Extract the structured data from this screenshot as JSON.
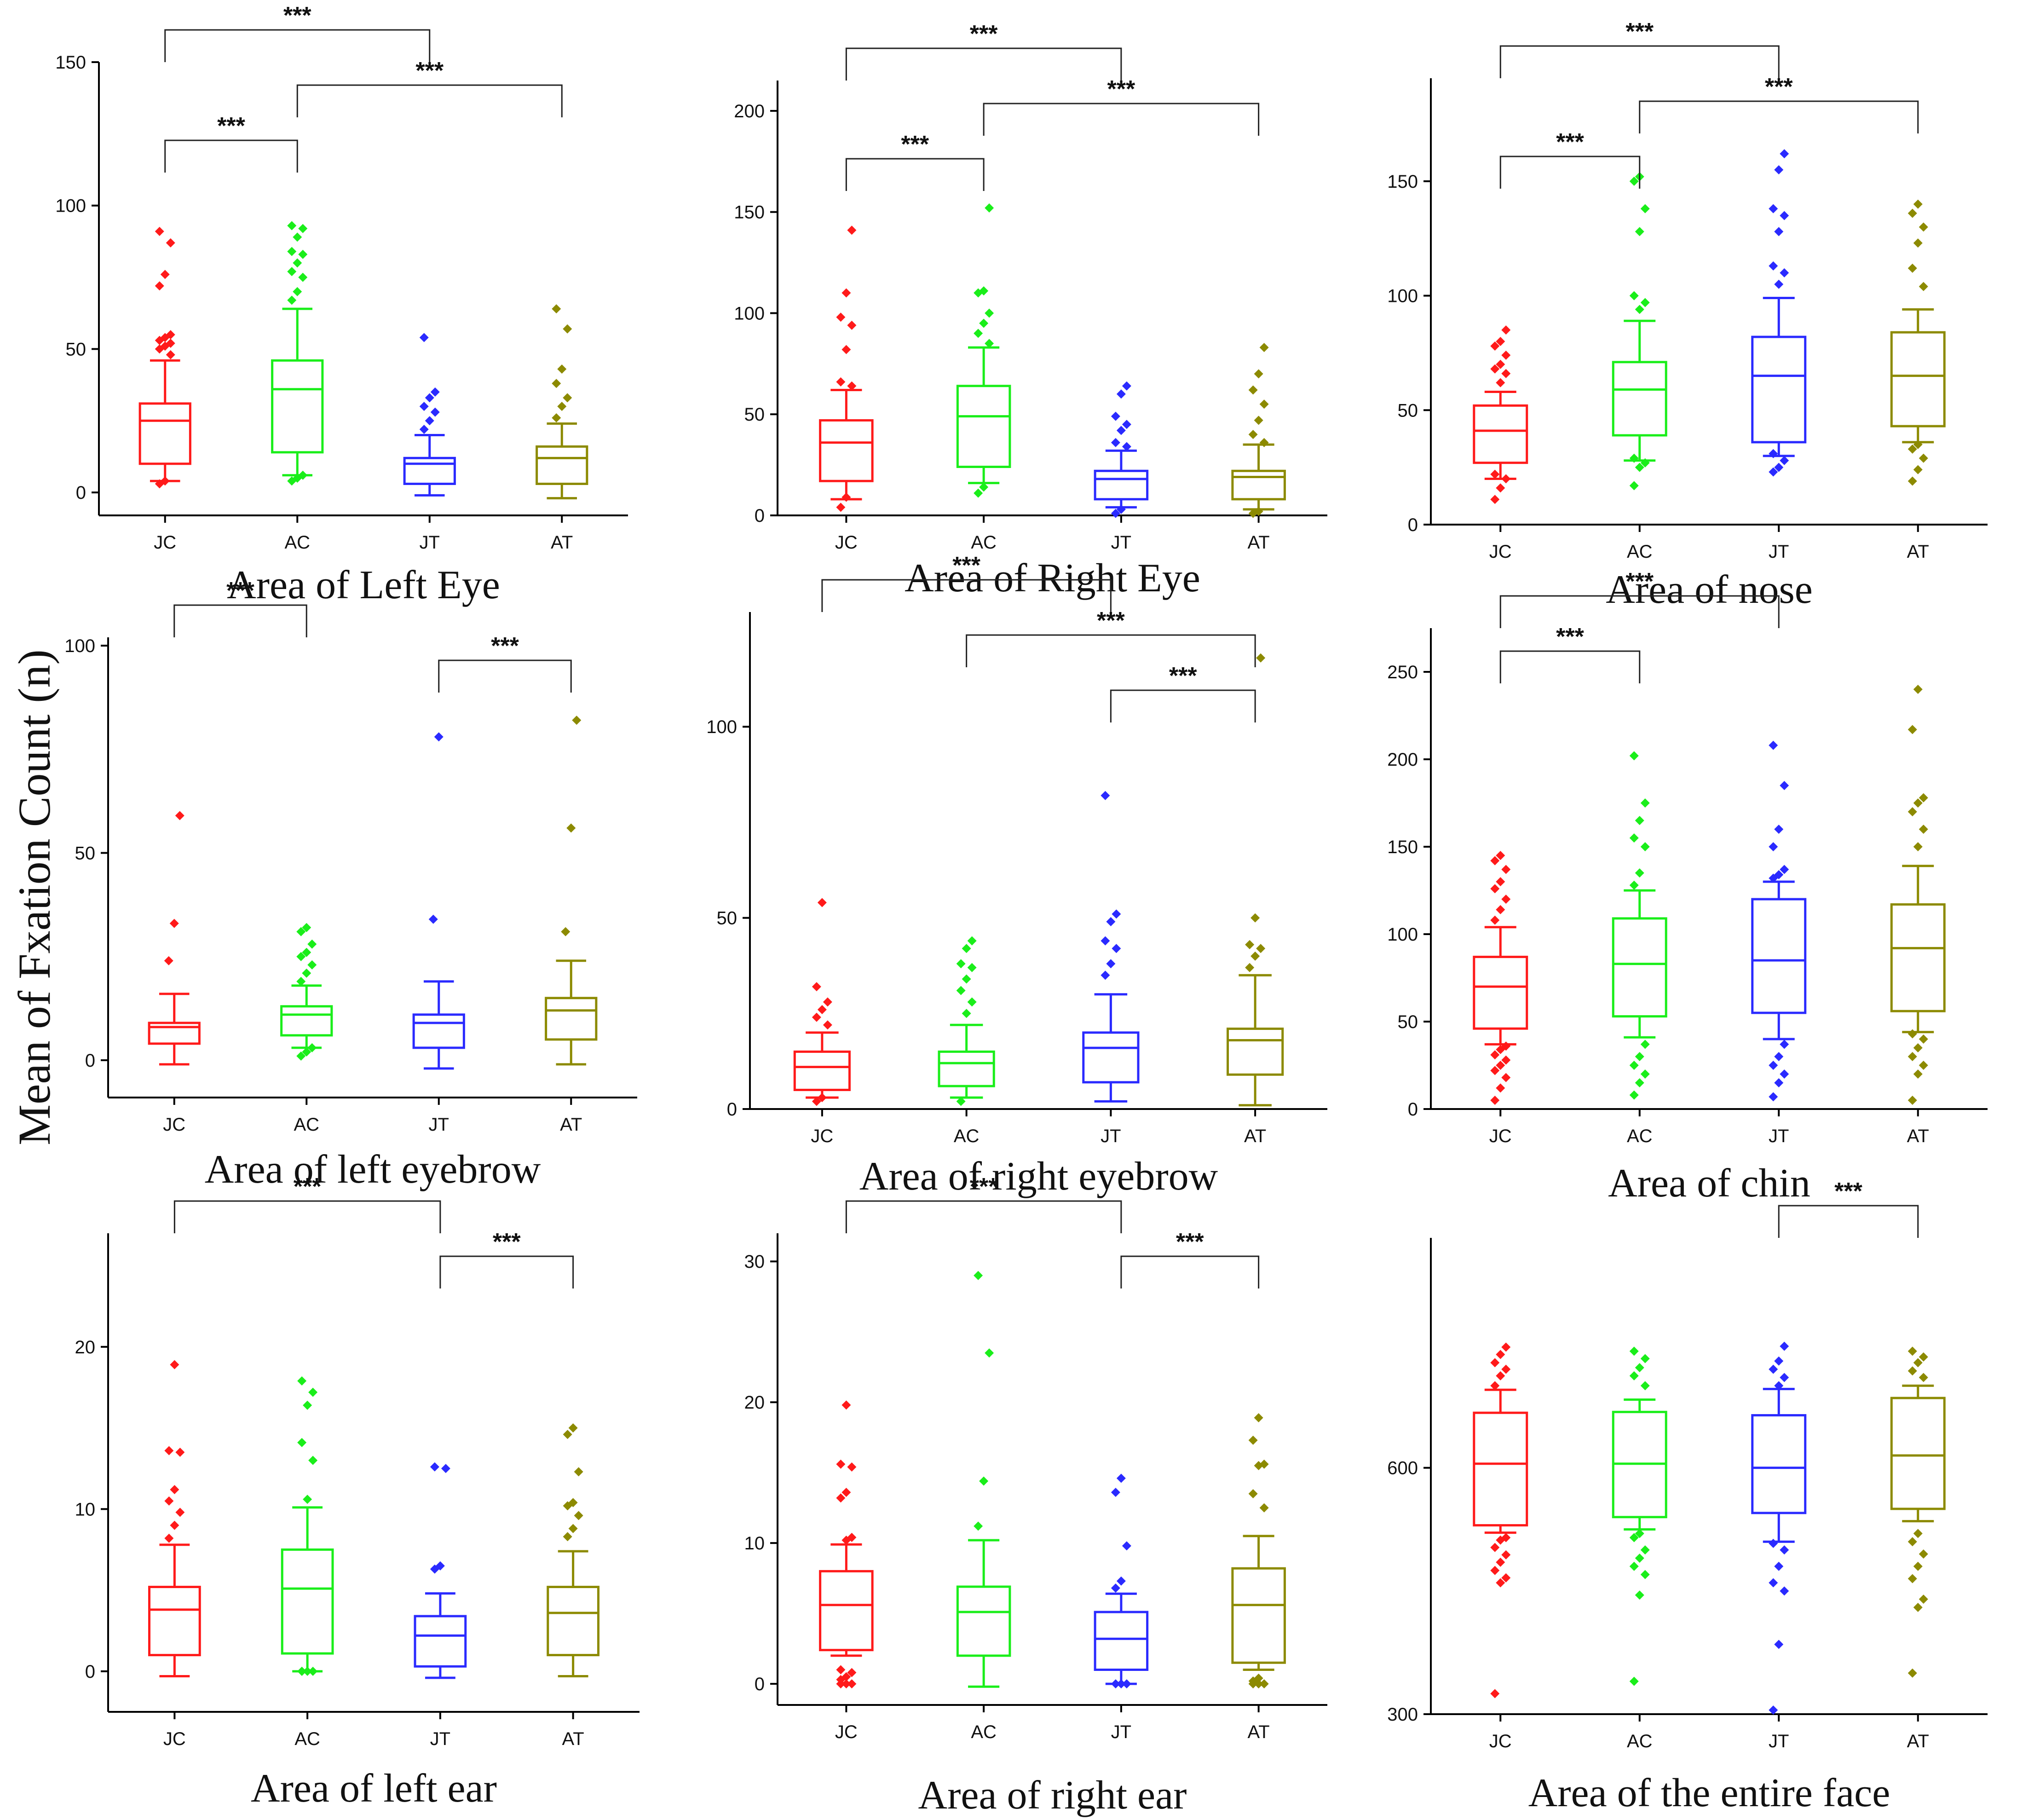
{
  "figure": {
    "ylabel": "Mean of Fxation Count (n)",
    "colors": {
      "JC": "#ff1a1a",
      "AC": "#1aee1a",
      "JT": "#2a2aff",
      "AT": "#8c8a00"
    }
  },
  "chart_data": [
    {
      "type": "box",
      "title": "Area of Left Eye",
      "ylim": [
        -8,
        150
      ],
      "yticks": [
        0,
        50,
        100,
        150
      ],
      "categories": [
        "JC",
        "AC",
        "JT",
        "AT"
      ],
      "boxes": [
        {
          "min": 4,
          "q1": 10,
          "median": 25,
          "q3": 31,
          "max": 46,
          "outliers": [
            3,
            4,
            48,
            50,
            51,
            52,
            53,
            54,
            55,
            72,
            76,
            87,
            91
          ]
        },
        {
          "min": 6,
          "q1": 14,
          "median": 36,
          "q3": 46,
          "max": 64,
          "outliers": [
            4,
            5,
            6,
            67,
            70,
            75,
            77,
            80,
            83,
            84,
            89,
            92,
            93
          ]
        },
        {
          "min": -1,
          "q1": 3,
          "median": 10,
          "q3": 12,
          "max": 20,
          "outliers": [
            22,
            25,
            28,
            30,
            33,
            35,
            54
          ]
        },
        {
          "min": -2,
          "q1": 3,
          "median": 12,
          "q3": 16,
          "max": 24,
          "outliers": [
            26,
            30,
            33,
            38,
            43,
            57,
            64
          ]
        }
      ],
      "comparisons": [
        {
          "from": 0,
          "to": 2,
          "label": "***"
        },
        {
          "from": 1,
          "to": 3,
          "label": "***"
        },
        {
          "from": 0,
          "to": 1,
          "label": "***"
        }
      ]
    },
    {
      "type": "box",
      "title": "Area of Right Eye",
      "ylim": [
        0,
        215
      ],
      "yticks": [
        0,
        50,
        100,
        150,
        200
      ],
      "categories": [
        "JC",
        "AC",
        "JT",
        "AT"
      ],
      "boxes": [
        {
          "min": 8,
          "q1": 17,
          "median": 36,
          "q3": 47,
          "max": 62,
          "outliers": [
            4,
            9,
            64,
            66,
            82,
            94,
            98,
            110,
            141
          ]
        },
        {
          "min": 16,
          "q1": 24,
          "median": 49,
          "q3": 64,
          "max": 83,
          "outliers": [
            11,
            14,
            85,
            90,
            95,
            100,
            110,
            111,
            152
          ]
        },
        {
          "min": 4,
          "q1": 8,
          "median": 18,
          "q3": 22,
          "max": 32,
          "outliers": [
            1,
            3,
            34,
            36,
            42,
            45,
            49,
            60,
            64
          ]
        },
        {
          "min": 3,
          "q1": 8,
          "median": 19,
          "q3": 22,
          "max": 35,
          "outliers": [
            1,
            2,
            36,
            40,
            47,
            55,
            62,
            70,
            83
          ]
        }
      ],
      "comparisons": [
        {
          "from": 0,
          "to": 2,
          "label": "***"
        },
        {
          "from": 1,
          "to": 3,
          "label": "***"
        },
        {
          "from": 0,
          "to": 1,
          "label": "***"
        }
      ]
    },
    {
      "type": "box",
      "title": "Area of nose",
      "ylim": [
        0,
        195
      ],
      "yticks": [
        0,
        50,
        100,
        150
      ],
      "categories": [
        "JC",
        "AC",
        "JT",
        "AT"
      ],
      "boxes": [
        {
          "min": 20,
          "q1": 27,
          "median": 41,
          "q3": 52,
          "max": 58,
          "outliers": [
            11,
            16,
            20,
            22,
            62,
            66,
            68,
            70,
            74,
            78,
            80,
            85
          ]
        },
        {
          "min": 28,
          "q1": 39,
          "median": 59,
          "q3": 71,
          "max": 89,
          "outliers": [
            17,
            25,
            27,
            29,
            94,
            97,
            100,
            128,
            138,
            150,
            152
          ]
        },
        {
          "min": 30,
          "q1": 36,
          "median": 65,
          "q3": 82,
          "max": 99,
          "outliers": [
            23,
            25,
            28,
            31,
            105,
            110,
            113,
            128,
            135,
            138,
            155,
            162
          ]
        },
        {
          "min": 36,
          "q1": 43,
          "median": 65,
          "q3": 84,
          "max": 94,
          "outliers": [
            19,
            24,
            29,
            33,
            35,
            104,
            112,
            123,
            130,
            136,
            140
          ]
        }
      ],
      "comparisons": [
        {
          "from": 0,
          "to": 2,
          "label": "***"
        },
        {
          "from": 1,
          "to": 3,
          "label": "***"
        },
        {
          "from": 0,
          "to": 1,
          "label": "***"
        }
      ]
    },
    {
      "type": "box",
      "title": "Area of left eyebrow",
      "ylim": [
        -9,
        102
      ],
      "yticks": [
        0,
        50,
        100
      ],
      "categories": [
        "JC",
        "AC",
        "JT",
        "AT"
      ],
      "boxes": [
        {
          "min": -1,
          "q1": 4,
          "median": 8,
          "q3": 9,
          "max": 16,
          "outliers": [
            24,
            33,
            59
          ]
        },
        {
          "min": 3,
          "q1": 6,
          "median": 11,
          "q3": 13,
          "max": 18,
          "outliers": [
            1,
            2,
            3,
            19,
            21,
            23,
            25,
            26,
            28,
            31,
            32
          ]
        },
        {
          "min": -2,
          "q1": 3,
          "median": 9,
          "q3": 11,
          "max": 19,
          "outliers": [
            34,
            78
          ]
        },
        {
          "min": -1,
          "q1": 5,
          "median": 12,
          "q3": 15,
          "max": 24,
          "outliers": [
            31,
            56,
            82
          ]
        }
      ],
      "comparisons": [
        {
          "from": 0,
          "to": 1,
          "label": "***"
        },
        {
          "from": 2,
          "to": 3,
          "label": "***"
        }
      ]
    },
    {
      "type": "box",
      "title": "Area of right eyebrow",
      "ylim": [
        0,
        130
      ],
      "yticks": [
        0,
        50,
        100
      ],
      "categories": [
        "JC",
        "AC",
        "JT",
        "AT"
      ],
      "boxes": [
        {
          "min": 3,
          "q1": 5,
          "median": 11,
          "q3": 15,
          "max": 20,
          "outliers": [
            2,
            3,
            22,
            24,
            26,
            28,
            32,
            54
          ]
        },
        {
          "min": 3,
          "q1": 6,
          "median": 12,
          "q3": 15,
          "max": 22,
          "outliers": [
            2,
            25,
            28,
            31,
            34,
            37,
            38,
            42,
            44
          ]
        },
        {
          "min": 2,
          "q1": 7,
          "median": 16,
          "q3": 20,
          "max": 30,
          "outliers": [
            35,
            38,
            42,
            44,
            49,
            51,
            82
          ]
        },
        {
          "min": 1,
          "q1": 9,
          "median": 18,
          "q3": 21,
          "max": 35,
          "outliers": [
            37,
            40,
            42,
            43,
            50,
            118
          ]
        }
      ],
      "comparisons": [
        {
          "from": 0,
          "to": 2,
          "label": "***"
        },
        {
          "from": 1,
          "to": 3,
          "label": "***"
        },
        {
          "from": 2,
          "to": 3,
          "label": "***"
        }
      ]
    },
    {
      "type": "box",
      "title": "Area of chin",
      "ylim": [
        0,
        275
      ],
      "yticks": [
        0,
        50,
        100,
        150,
        200,
        250
      ],
      "categories": [
        "JC",
        "AC",
        "JT",
        "AT"
      ],
      "boxes": [
        {
          "min": 37,
          "q1": 46,
          "median": 70,
          "q3": 87,
          "max": 104,
          "outliers": [
            5,
            12,
            18,
            22,
            25,
            28,
            31,
            34,
            36,
            108,
            114,
            120,
            126,
            130,
            137,
            142,
            145
          ]
        },
        {
          "min": 41,
          "q1": 53,
          "median": 83,
          "q3": 109,
          "max": 125,
          "outliers": [
            8,
            15,
            20,
            25,
            30,
            37,
            128,
            135,
            150,
            155,
            165,
            175,
            202
          ]
        },
        {
          "min": 40,
          "q1": 55,
          "median": 85,
          "q3": 120,
          "max": 130,
          "outliers": [
            7,
            15,
            20,
            25,
            30,
            37,
            132,
            134,
            137,
            150,
            160,
            185,
            208
          ]
        },
        {
          "min": 44,
          "q1": 56,
          "median": 92,
          "q3": 117,
          "max": 139,
          "outliers": [
            5,
            20,
            25,
            30,
            35,
            40,
            43,
            150,
            160,
            170,
            175,
            178,
            217,
            240
          ]
        }
      ],
      "comparisons": [
        {
          "from": 0,
          "to": 2,
          "label": "***"
        },
        {
          "from": 0,
          "to": 1,
          "label": "***"
        }
      ]
    },
    {
      "type": "box",
      "title": "Area of left ear",
      "ylim": [
        -2.5,
        27
      ],
      "yticks": [
        0,
        10,
        20
      ],
      "categories": [
        "JC",
        "AC",
        "JT",
        "AT"
      ],
      "boxes": [
        {
          "min": -0.3,
          "q1": 1,
          "median": 3.8,
          "q3": 5.2,
          "max": 7.8,
          "outliers": [
            8.2,
            9,
            9.8,
            10.5,
            11.2,
            13.5,
            13.6,
            18.9
          ]
        },
        {
          "min": 0,
          "q1": 1.1,
          "median": 5.1,
          "q3": 7.5,
          "max": 10.1,
          "outliers": [
            0,
            0,
            0,
            0,
            10.6,
            13,
            14.1,
            16.4,
            17.2,
            17.9
          ]
        },
        {
          "min": -0.4,
          "q1": 0.3,
          "median": 2.2,
          "q3": 3.4,
          "max": 4.8,
          "outliers": [
            6.3,
            6.5,
            12.5,
            12.6
          ]
        },
        {
          "min": -0.3,
          "q1": 1,
          "median": 3.6,
          "q3": 5.2,
          "max": 7.4,
          "outliers": [
            8.3,
            8.8,
            9.6,
            10.2,
            10.4,
            12.3,
            14.6,
            15
          ]
        }
      ],
      "comparisons": [
        {
          "from": 0,
          "to": 2,
          "label": "***"
        },
        {
          "from": 2,
          "to": 3,
          "label": "***"
        }
      ]
    },
    {
      "type": "box",
      "title": "Area of right ear",
      "ylim": [
        -1.5,
        32
      ],
      "yticks": [
        0,
        10,
        20,
        30
      ],
      "categories": [
        "JC",
        "AC",
        "JT",
        "AT"
      ],
      "boxes": [
        {
          "min": 2,
          "q1": 2.4,
          "median": 5.6,
          "q3": 8,
          "max": 9.9,
          "outliers": [
            0,
            0,
            0,
            0.3,
            0.5,
            0.8,
            1,
            10.2,
            10.4,
            13.2,
            13.6,
            15.4,
            15.6,
            19.8
          ]
        },
        {
          "min": -0.2,
          "q1": 2,
          "median": 5.1,
          "q3": 6.9,
          "max": 10.2,
          "outliers": [
            11.2,
            14.4,
            23.5,
            29
          ]
        },
        {
          "min": 0,
          "q1": 1,
          "median": 3.2,
          "q3": 5.1,
          "max": 6.4,
          "outliers": [
            0,
            0,
            0,
            6.8,
            7.3,
            9.8,
            13.6,
            14.6
          ]
        },
        {
          "min": 1,
          "q1": 1.5,
          "median": 5.6,
          "q3": 8.2,
          "max": 10.5,
          "outliers": [
            0,
            0,
            0,
            0.2,
            0.4,
            12.5,
            13.5,
            15.5,
            15.6,
            17.3,
            18.9
          ]
        }
      ],
      "comparisons": [
        {
          "from": 0,
          "to": 2,
          "label": "***"
        },
        {
          "from": 2,
          "to": 3,
          "label": "***"
        }
      ]
    },
    {
      "type": "box",
      "title": "Area of the entire face",
      "ylim": [
        300,
        880
      ],
      "yticks": [
        300,
        600
      ],
      "categories": [
        "JC",
        "AC",
        "JT",
        "AT"
      ],
      "boxes": [
        {
          "min": 521,
          "q1": 530,
          "median": 605,
          "q3": 667,
          "max": 695,
          "outliers": [
            325,
            460,
            466,
            475,
            485,
            494,
            503,
            512,
            515,
            700,
            712,
            720,
            728,
            738,
            747
          ]
        },
        {
          "min": 525,
          "q1": 540,
          "median": 605,
          "q3": 668,
          "max": 683,
          "outliers": [
            340,
            445,
            470,
            480,
            490,
            500,
            515,
            520,
            700,
            712,
            722,
            733,
            742
          ]
        },
        {
          "min": 510,
          "q1": 545,
          "median": 600,
          "q3": 664,
          "max": 696,
          "outliers": [
            305,
            385,
            450,
            460,
            480,
            500,
            508,
            700,
            710,
            720,
            730,
            748
          ]
        },
        {
          "min": 535,
          "q1": 550,
          "median": 615,
          "q3": 685,
          "max": 700,
          "outliers": [
            350,
            430,
            440,
            465,
            480,
            495,
            510,
            520,
            710,
            718,
            728,
            735,
            742
          ]
        }
      ],
      "comparisons": [
        {
          "from": 2,
          "to": 3,
          "label": "***"
        }
      ]
    }
  ]
}
